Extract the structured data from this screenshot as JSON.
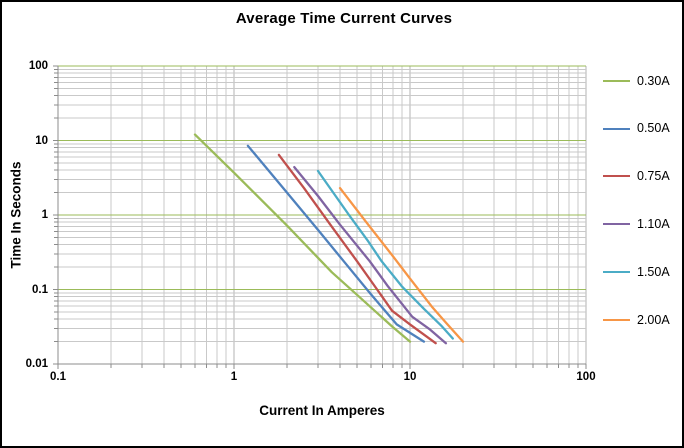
{
  "title": "Average Time Current Curves",
  "chart_data": {
    "type": "line",
    "title": "Average Time Current Curves",
    "xlabel": "Current In Amperes",
    "ylabel": "Time In Seconds",
    "x_axis": {
      "scale": "log",
      "min": 0.1,
      "max": 100,
      "tick_labels": [
        "0.1",
        "1",
        "10",
        "100"
      ],
      "tick_values": [
        0.1,
        1,
        10,
        100
      ]
    },
    "y_axis": {
      "scale": "log",
      "min": 0.01,
      "max": 100,
      "tick_labels": [
        "100",
        "10",
        "1",
        "0.1",
        "0.01"
      ],
      "tick_values": [
        100,
        10,
        1,
        0.1,
        0.01
      ]
    },
    "grid": {
      "minor": "on",
      "major": "on"
    },
    "legend_position": "right",
    "colors": {
      "grid_major_h": "#9BBB59",
      "grid_major_v": "#B3B3B3",
      "grid_minor": "#C9C9C9",
      "axis_line": "#8C8C8C",
      "text": "#000000"
    },
    "series": [
      {
        "name": "0.30A",
        "color": "#9BBB59",
        "points": [
          [
            0.6,
            12
          ],
          [
            1,
            3.7
          ],
          [
            2,
            0.72
          ],
          [
            3.6,
            0.17
          ],
          [
            5,
            0.085
          ],
          [
            7.9,
            0.032
          ],
          [
            10,
            0.02
          ]
        ]
      },
      {
        "name": "0.50A",
        "color": "#4F81BD",
        "points": [
          [
            1.2,
            8.5
          ],
          [
            2,
            2.0
          ],
          [
            3,
            0.63
          ],
          [
            4.2,
            0.24
          ],
          [
            6,
            0.086
          ],
          [
            8.4,
            0.034
          ],
          [
            12,
            0.02
          ]
        ]
      },
      {
        "name": "0.75A",
        "color": "#C0504D",
        "points": [
          [
            1.8,
            6.4
          ],
          [
            2.5,
            2.3
          ],
          [
            3.5,
            0.76
          ],
          [
            5,
            0.24
          ],
          [
            6.5,
            0.1
          ],
          [
            7.9,
            0.052
          ],
          [
            10,
            0.034
          ],
          [
            14,
            0.019
          ]
        ]
      },
      {
        "name": "1.10A",
        "color": "#8064A2",
        "points": [
          [
            2.2,
            4.4
          ],
          [
            3,
            1.8
          ],
          [
            4,
            0.74
          ],
          [
            5.9,
            0.24
          ],
          [
            7.5,
            0.11
          ],
          [
            10.3,
            0.043
          ],
          [
            13,
            0.029
          ],
          [
            16,
            0.019
          ]
        ]
      },
      {
        "name": "1.50A",
        "color": "#4BACC6",
        "points": [
          [
            3,
            3.9
          ],
          [
            4.5,
            1.0
          ],
          [
            5.8,
            0.44
          ],
          [
            6.9,
            0.24
          ],
          [
            9,
            0.11
          ],
          [
            12,
            0.055
          ],
          [
            15,
            0.033
          ],
          [
            17.5,
            0.022
          ]
        ]
      },
      {
        "name": "2.00A",
        "color": "#F79646",
        "points": [
          [
            4,
            2.3
          ],
          [
            5.6,
            0.82
          ],
          [
            8,
            0.28
          ],
          [
            10,
            0.14
          ],
          [
            13.3,
            0.059
          ],
          [
            16,
            0.036
          ],
          [
            20,
            0.02
          ]
        ]
      }
    ]
  }
}
